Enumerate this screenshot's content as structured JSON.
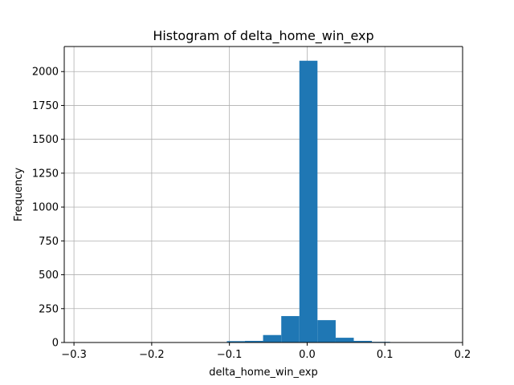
{
  "chart_data": {
    "type": "bar",
    "title": "Histogram of delta_home_win_exp",
    "xlabel": "delta_home_win_exp",
    "ylabel": "Frequency",
    "xlim": [
      -0.3125,
      0.2
    ],
    "ylim": [
      0,
      2185
    ],
    "grid": true,
    "bar_color": "#1f77b4",
    "xticks": [
      -0.3,
      -0.2,
      -0.1,
      0.0,
      0.1,
      0.2
    ],
    "xtick_labels": [
      "−0.3",
      "−0.2",
      "−0.1",
      "0.0",
      "0.1",
      "0.2"
    ],
    "yticks": [
      0,
      250,
      500,
      750,
      1000,
      1250,
      1500,
      1750,
      2000
    ],
    "ytick_labels": [
      "0",
      "250",
      "500",
      "750",
      "1000",
      "1250",
      "1500",
      "1750",
      "2000"
    ],
    "bin_edges": [
      -0.29,
      -0.2667,
      -0.2433,
      -0.22,
      -0.1967,
      -0.1733,
      -0.15,
      -0.1267,
      -0.1033,
      -0.08,
      -0.0567,
      -0.0333,
      -0.01,
      0.0133,
      0.0367,
      0.06,
      0.0833,
      0.1067,
      0.13,
      0.1533,
      0.1767
    ],
    "values": [
      1,
      0,
      0,
      0,
      0,
      0,
      0,
      0,
      10,
      12,
      55,
      195,
      2080,
      165,
      35,
      12,
      5,
      3,
      1,
      1
    ]
  }
}
